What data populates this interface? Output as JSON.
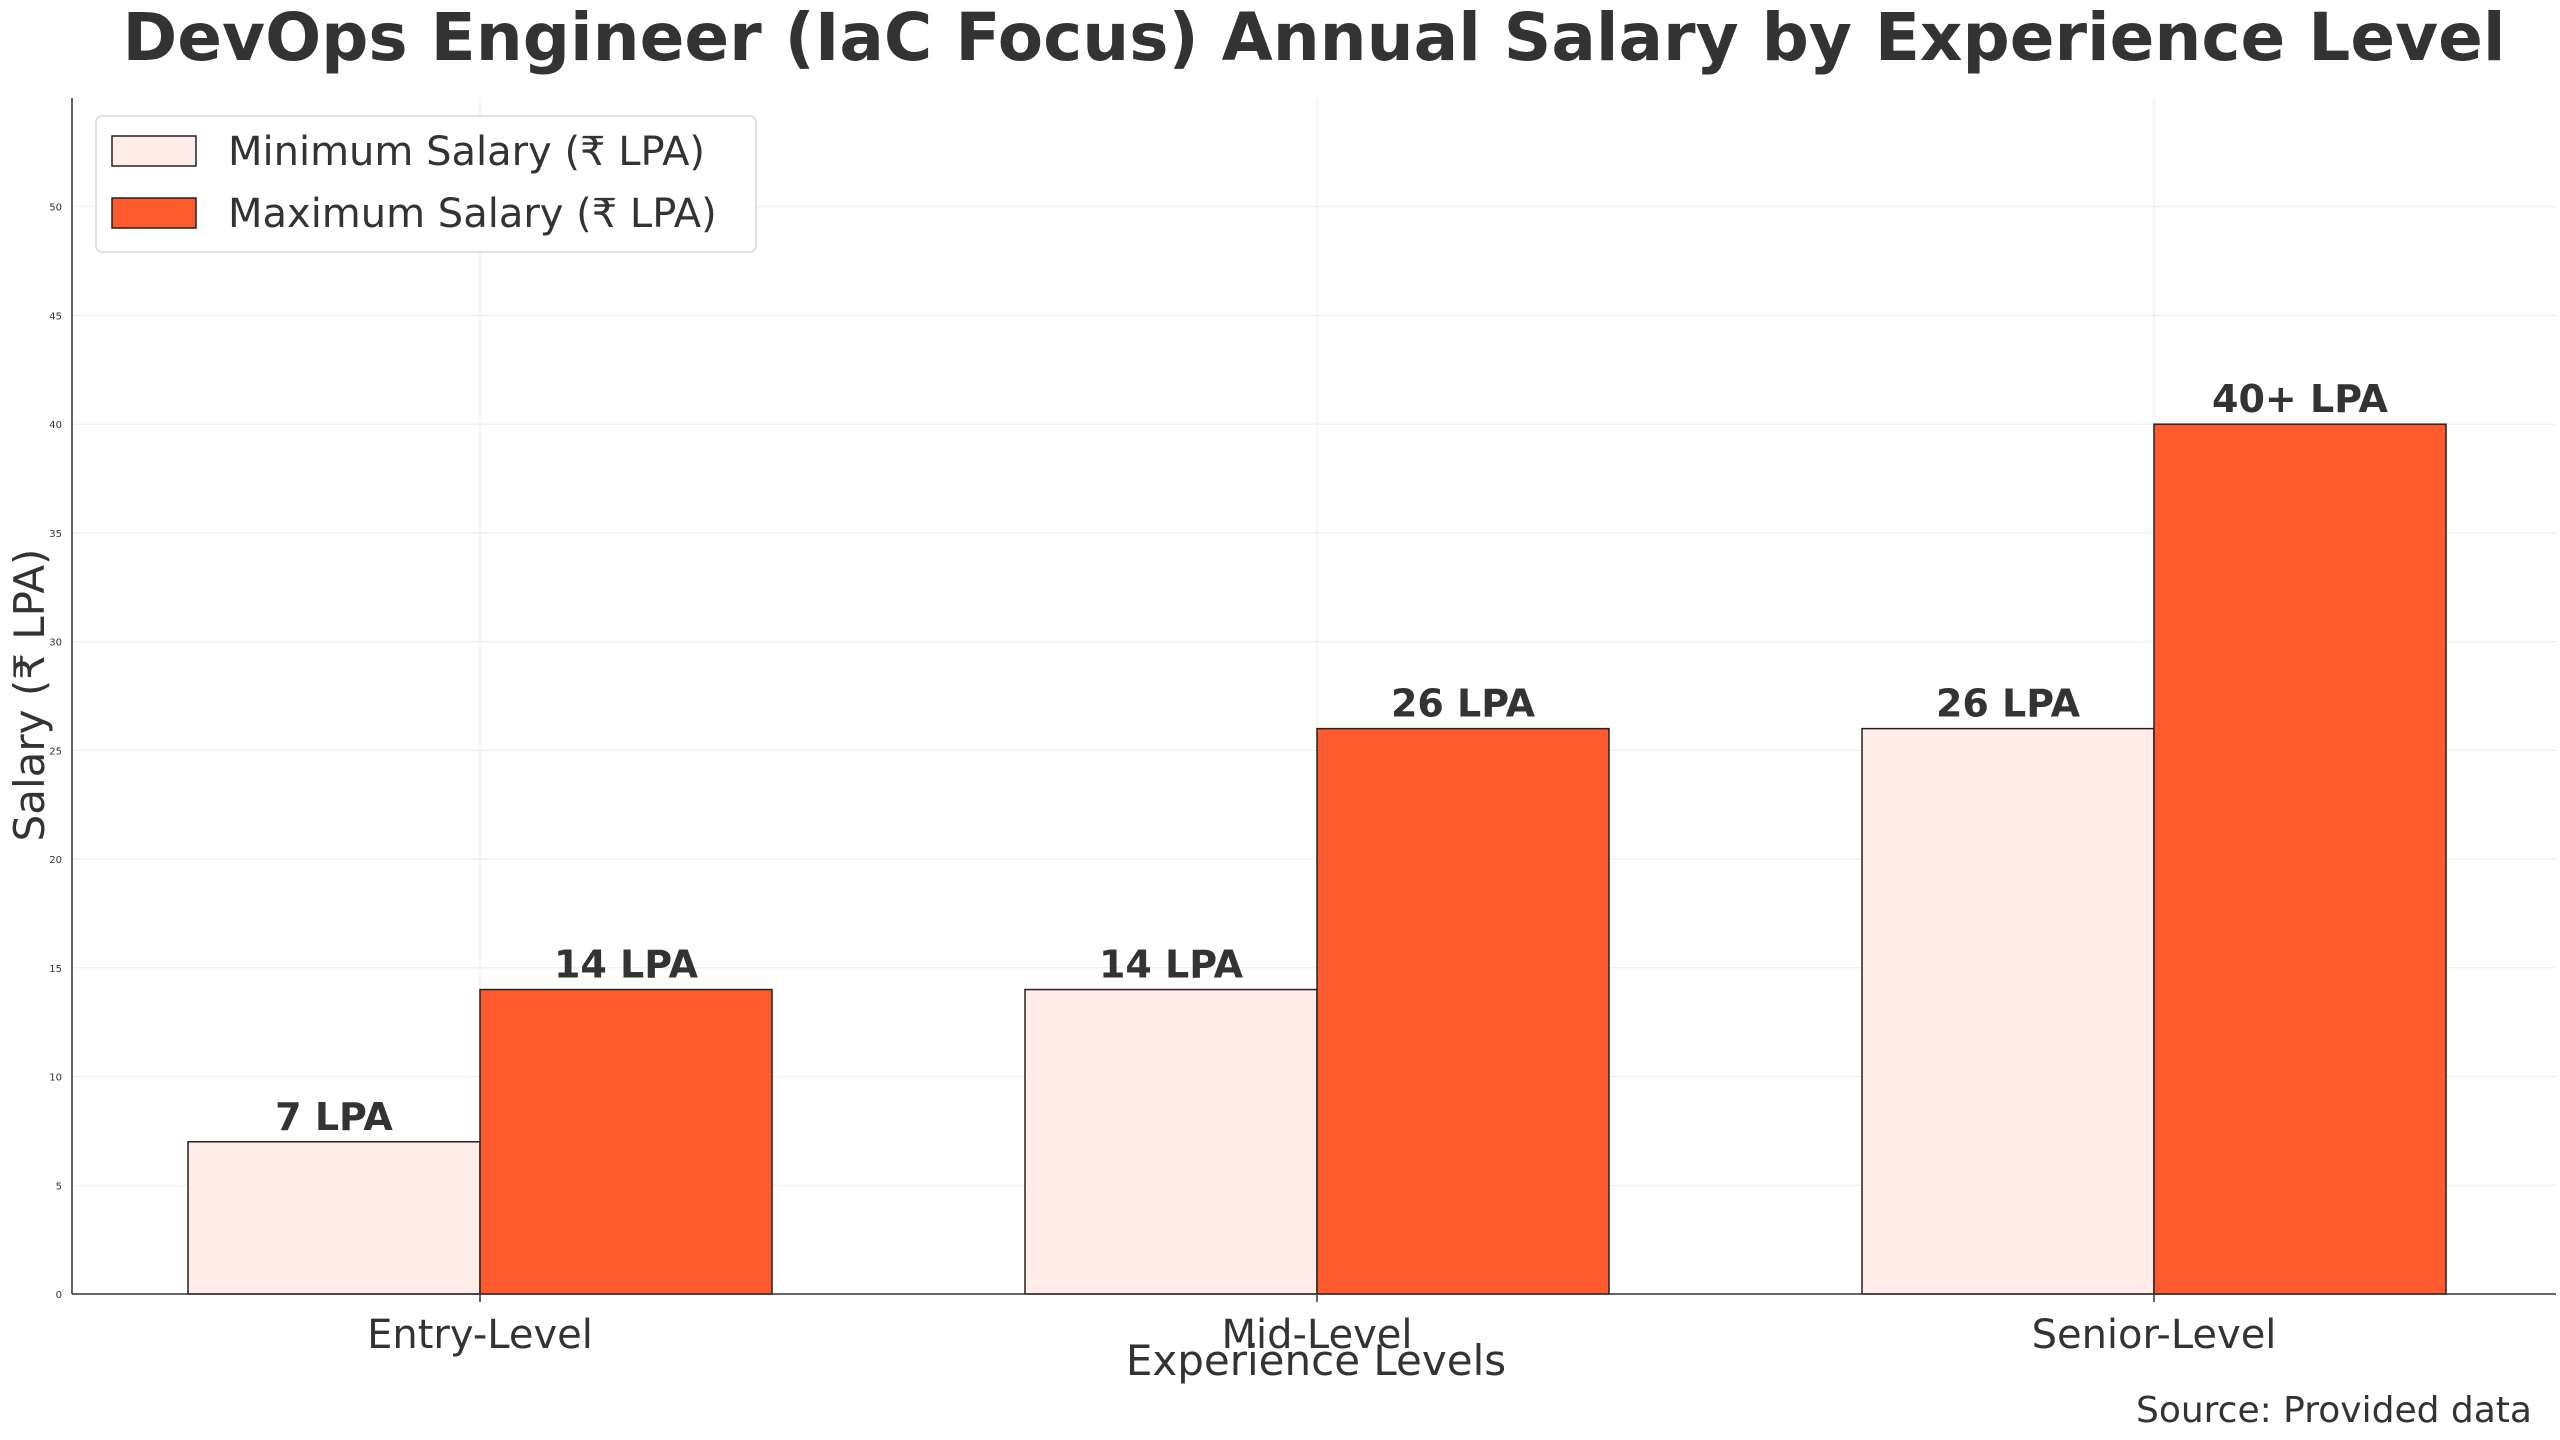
{
  "chart_data": {
    "type": "bar",
    "title": "DevOps Engineer (IaC Focus) Annual Salary by Experience Level",
    "xlabel": "Experience Levels",
    "ylabel": "Salary (₹ LPA)",
    "categories": [
      "Entry-Level",
      "Mid-Level",
      "Senior-Level"
    ],
    "series": [
      {
        "name": "Minimum Salary (₹ LPA)",
        "values": [
          7,
          14,
          26
        ],
        "labels": [
          "7 LPA",
          "14 LPA",
          "26 LPA"
        ],
        "color": "#ffebe8"
      },
      {
        "name": "Maximum Salary (₹ LPA)",
        "values": [
          14,
          26,
          40
        ],
        "labels": [
          "14 LPA",
          "26 LPA",
          "40+ LPA"
        ],
        "color": "#ff5a2e"
      }
    ],
    "ylim": [
      0,
      55
    ],
    "yticks": [
      0,
      5,
      10,
      15,
      20,
      25,
      30,
      35,
      40,
      45,
      50
    ],
    "grid": true,
    "legend_position": "top-left",
    "source": "Source: Provided data"
  }
}
